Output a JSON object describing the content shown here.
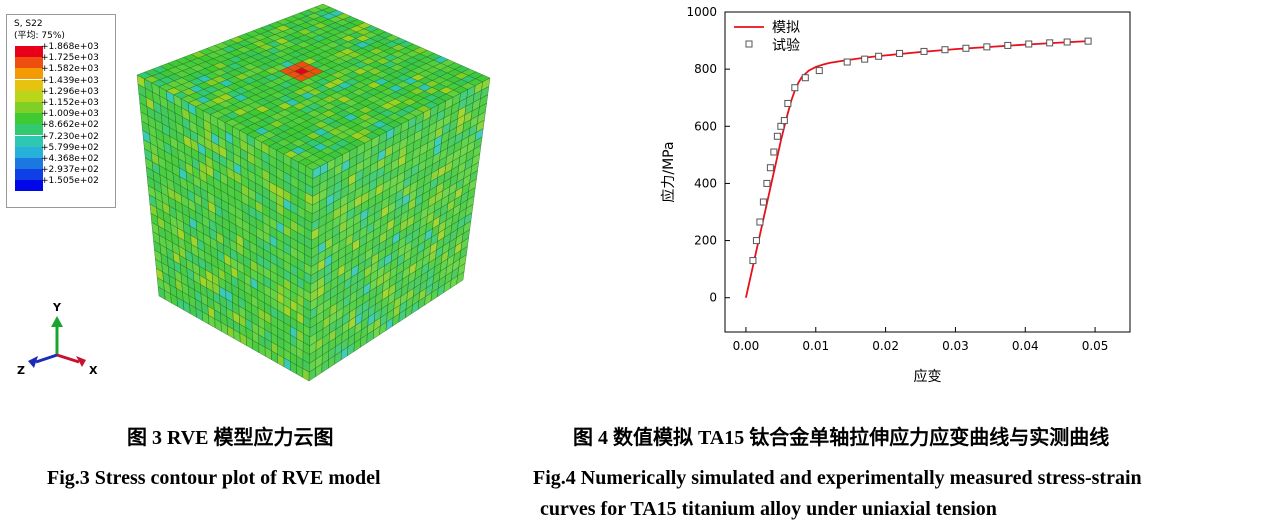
{
  "fig3": {
    "legend": {
      "title": "S, S22",
      "subtitle": "(平均: 75%)",
      "entries": [
        {
          "label": "+1.868e+03",
          "color": "#e8001a"
        },
        {
          "label": "+1.725e+03",
          "color": "#ee4f0e"
        },
        {
          "label": "+1.582e+03",
          "color": "#f39a05"
        },
        {
          "label": "+1.439e+03",
          "color": "#e4c410"
        },
        {
          "label": "+1.296e+03",
          "color": "#b9d61a"
        },
        {
          "label": "+1.152e+03",
          "color": "#7fcf27"
        },
        {
          "label": "+1.009e+03",
          "color": "#3fca34"
        },
        {
          "label": "+8.662e+02",
          "color": "#33c96e"
        },
        {
          "label": "+7.230e+02",
          "color": "#2ec8b2"
        },
        {
          "label": "+5.799e+02",
          "color": "#25b1d9"
        },
        {
          "label": "+4.368e+02",
          "color": "#1b78e0"
        },
        {
          "label": "+2.937e+02",
          "color": "#0f3fe6"
        },
        {
          "label": "+1.505e+02",
          "color": "#0007e8"
        }
      ]
    },
    "triad": {
      "y": "Y",
      "z": "Z",
      "x": "X"
    },
    "caption_cn": "图 3 RVE 模型应力云图",
    "caption_en": "Fig.3 Stress contour plot of RVE model"
  },
  "fig4": {
    "caption_cn": "图 4  数值模拟 TA15 钛合金单轴拉伸应力应变曲线与实测曲线",
    "caption_en_line1": "Fig.4 Numerically simulated and experimentally measured stress-strain",
    "caption_en_line2": "curves for TA15 titanium alloy under uniaxial tension"
  },
  "chart_data": {
    "type": "line",
    "title": "",
    "xlabel": "应变",
    "ylabel": "应力/MPa",
    "xlim": [
      -0.003,
      0.055
    ],
    "ylim": [
      -120,
      1000
    ],
    "xticks": [
      "0.00",
      "0.01",
      "0.02",
      "0.03",
      "0.04",
      "0.05"
    ],
    "xtick_values": [
      0,
      0.01,
      0.02,
      0.03,
      0.04,
      0.05
    ],
    "yticks": [
      "0",
      "200",
      "400",
      "600",
      "800",
      "1000"
    ],
    "ytick_values": [
      0,
      200,
      400,
      600,
      800,
      1000
    ],
    "grid": false,
    "legend_position": "top-left",
    "series": [
      {
        "name": "模拟",
        "style": "line",
        "color": "#e8101a",
        "x": [
          0.0,
          0.0005,
          0.001,
          0.0015,
          0.002,
          0.0025,
          0.003,
          0.0035,
          0.004,
          0.0045,
          0.005,
          0.0055,
          0.006,
          0.0065,
          0.007,
          0.0075,
          0.008,
          0.009,
          0.01,
          0.011,
          0.012,
          0.014,
          0.016,
          0.018,
          0.02,
          0.025,
          0.03,
          0.035,
          0.04,
          0.045,
          0.049
        ],
        "y": [
          0,
          55,
          110,
          165,
          220,
          275,
          330,
          385,
          440,
          495,
          550,
          600,
          645,
          690,
          725,
          752,
          772,
          795,
          808,
          816,
          822,
          830,
          837,
          843,
          848,
          860,
          870,
          878,
          886,
          893,
          898
        ]
      },
      {
        "name": "试验",
        "style": "marker",
        "marker": "open-square",
        "color": "#555555",
        "x": [
          0.001,
          0.0015,
          0.002,
          0.0025,
          0.003,
          0.0035,
          0.004,
          0.0045,
          0.005,
          0.0055,
          0.006,
          0.007,
          0.0085,
          0.0105,
          0.0145,
          0.017,
          0.019,
          0.022,
          0.0255,
          0.0285,
          0.0315,
          0.0345,
          0.0375,
          0.0405,
          0.0435,
          0.046,
          0.049
        ],
        "y": [
          130,
          200,
          265,
          335,
          400,
          455,
          510,
          565,
          600,
          620,
          680,
          735,
          770,
          795,
          825,
          835,
          845,
          855,
          862,
          868,
          873,
          878,
          883,
          888,
          892,
          895,
          898
        ]
      }
    ]
  }
}
